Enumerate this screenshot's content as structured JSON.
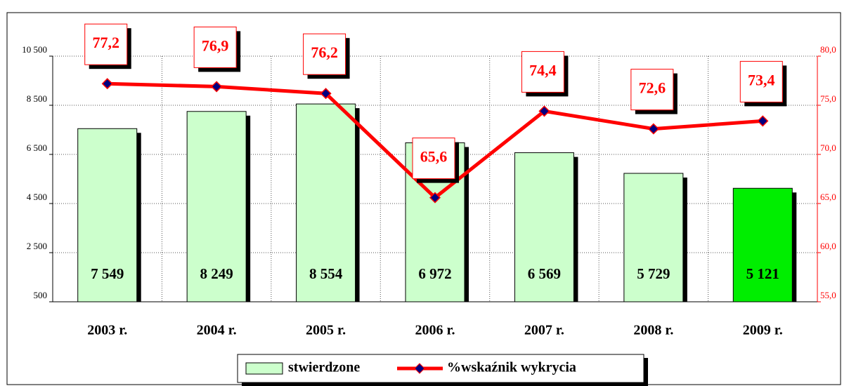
{
  "chart_data": {
    "type": "bar+line",
    "categories": [
      "2003 r.",
      "2004 r.",
      "2005 r.",
      "2006 r.",
      "2007 r.",
      "2008 r.",
      "2009 r."
    ],
    "series": [
      {
        "name": "stwierdzone",
        "type": "bar",
        "color": "#ccffcc",
        "colors": [
          "#ccffcc",
          "#ccffcc",
          "#ccffcc",
          "#ccffcc",
          "#ccffcc",
          "#ccffcc",
          "#00ee00"
        ],
        "values": [
          7549,
          8249,
          8554,
          6972,
          6569,
          5729,
          5121
        ],
        "value_labels": [
          "7 549",
          "8 249",
          "8 554",
          "6 972",
          "6 569",
          "5 729",
          "5 121"
        ]
      },
      {
        "name": "%wskaźnik wykrycia",
        "type": "line",
        "axis": "y2",
        "color": "#ff0000",
        "marker_color": "#000080",
        "values": [
          77.2,
          76.9,
          76.2,
          65.6,
          74.4,
          72.6,
          73.4
        ],
        "value_labels": [
          "77,2",
          "76,9",
          "76,2",
          "65,6",
          "74,4",
          "72,6",
          "73,4"
        ]
      }
    ],
    "ylim": [
      500,
      10500
    ],
    "yticks": [
      {
        "value": 500,
        "label": "500"
      },
      {
        "value": 2500,
        "label": "2 500"
      },
      {
        "value": 4500,
        "label": "4 500"
      },
      {
        "value": 6500,
        "label": "6 500"
      },
      {
        "value": 8500,
        "label": "8 500"
      },
      {
        "value": 10500,
        "label": "10 500"
      }
    ],
    "y2lim": [
      55,
      80
    ],
    "y2ticks": [
      {
        "value": 55,
        "label": "55,0"
      },
      {
        "value": 60,
        "label": "60,0"
      },
      {
        "value": 65,
        "label": "65,0"
      },
      {
        "value": 70,
        "label": "70,0"
      },
      {
        "value": 75,
        "label": "75,0"
      },
      {
        "value": 80,
        "label": "80,0"
      }
    ],
    "grid": true,
    "legend": "bottom"
  }
}
